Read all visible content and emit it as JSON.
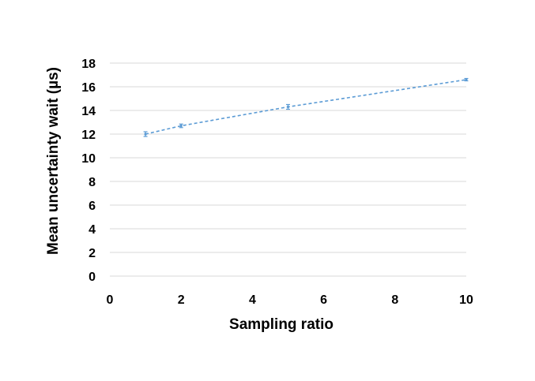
{
  "chart_data": {
    "type": "line",
    "title": "",
    "xlabel": "Sampling ratio",
    "ylabel": "Mean uncertainty wait (µs)",
    "xlim": [
      0,
      10
    ],
    "ylim": [
      0,
      18
    ],
    "xticks": [
      0,
      2,
      4,
      6,
      8,
      10
    ],
    "yticks": [
      0,
      2,
      4,
      6,
      8,
      10,
      12,
      14,
      16,
      18
    ],
    "grid": "horizontal",
    "legend": "none",
    "series": [
      {
        "color": "#5B9BD5",
        "line_style": "dashed",
        "x": [
          1,
          2,
          5,
          10
        ],
        "y": [
          12.0,
          12.7,
          14.3,
          16.6
        ],
        "error": [
          0.2,
          0.15,
          0.2,
          0.1
        ]
      }
    ]
  },
  "colors": {
    "series": "#5B9BD5",
    "grid": "#D9D9D9",
    "text": "#000000"
  }
}
